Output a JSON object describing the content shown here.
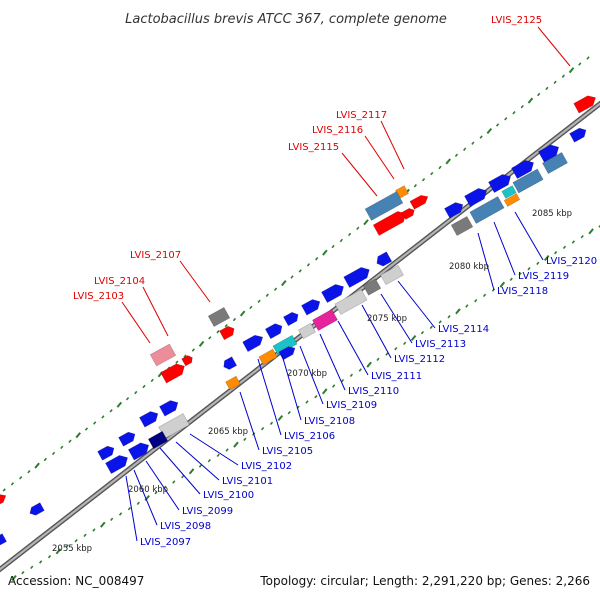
{
  "title": "Lactobacillus brevis ATCC 367, complete genome",
  "accession": "Accession: NC_008497",
  "summary": "Topology: circular; Length: 2,291,220 bp; Genes: 2,266",
  "colors": {
    "red_label": "#e00000",
    "blue_label": "#0000cc",
    "cds_blue": "#0b14e8",
    "red": "#ff0000",
    "steelblue": "#4682b4",
    "orange": "#ff8c00",
    "gray": "#7a7a7a",
    "lightgray": "#cfcfcf",
    "pink": "#ee8d9a",
    "magenta": "#e6239a",
    "cyan": "#19c3c8",
    "navy": "#000080",
    "tick_green": "#2d7d2d",
    "backbone": "#888888"
  },
  "ticks": [
    "2055 kbp",
    "2060 kbp",
    "2065 kbp",
    "2070 kbp",
    "2075 kbp",
    "2080 kbp",
    "2085 kbp"
  ],
  "labels": [
    {
      "text": "LVIS_2125",
      "color": "red"
    },
    {
      "text": "LVIS_2117",
      "color": "red"
    },
    {
      "text": "LVIS_2116",
      "color": "red"
    },
    {
      "text": "LVIS_2115",
      "color": "red"
    },
    {
      "text": "LVIS_2107",
      "color": "red"
    },
    {
      "text": "LVIS_2104",
      "color": "red"
    },
    {
      "text": "LVIS_2103",
      "color": "red"
    },
    {
      "text": "LVIS_2120",
      "color": "blue"
    },
    {
      "text": "LVIS_2119",
      "color": "blue"
    },
    {
      "text": "LVIS_2118",
      "color": "blue"
    },
    {
      "text": "LVIS_2114",
      "color": "blue"
    },
    {
      "text": "LVIS_2113",
      "color": "blue"
    },
    {
      "text": "LVIS_2112",
      "color": "blue"
    },
    {
      "text": "LVIS_2111",
      "color": "blue"
    },
    {
      "text": "LVIS_2110",
      "color": "blue"
    },
    {
      "text": "LVIS_2109",
      "color": "blue"
    },
    {
      "text": "LVIS_2108",
      "color": "blue"
    },
    {
      "text": "LVIS_2106",
      "color": "blue"
    },
    {
      "text": "LVIS_2105",
      "color": "blue"
    },
    {
      "text": "LVIS_2102",
      "color": "blue"
    },
    {
      "text": "LVIS_2101",
      "color": "blue"
    },
    {
      "text": "LVIS_2100",
      "color": "blue"
    },
    {
      "text": "LVIS_2099",
      "color": "blue"
    },
    {
      "text": "LVIS_2098",
      "color": "blue"
    },
    {
      "text": "LVIS_2097",
      "color": "blue"
    }
  ]
}
